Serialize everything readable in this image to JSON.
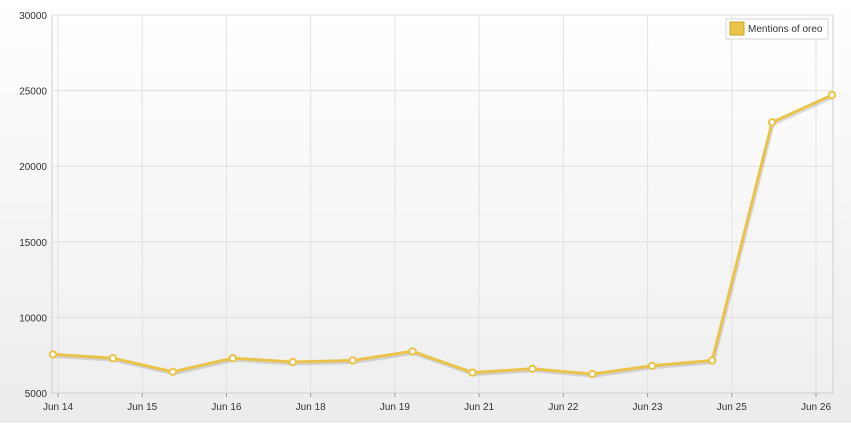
{
  "chart_data": {
    "type": "line",
    "title": "",
    "xlabel": "",
    "ylabel": "",
    "ylim": [
      5000,
      30000
    ],
    "y_ticks": [
      5000,
      10000,
      15000,
      20000,
      25000,
      30000
    ],
    "x_tick_labels": [
      "Jun 14",
      "Jun 15",
      "Jun 16",
      "Jun 18",
      "Jun 19",
      "Jun 21",
      "Jun 22",
      "Jun 23",
      "Jun 25",
      "Jun 26"
    ],
    "grid": true,
    "legend_position": "top-right",
    "series": [
      {
        "name": "Mentions of oreo",
        "color": "#e9c34a",
        "marker_fill": "#ffffff",
        "values": [
          7550,
          7300,
          6400,
          7300,
          7050,
          7150,
          7750,
          6350,
          6600,
          6250,
          6800,
          7150,
          22900,
          24700
        ]
      }
    ]
  }
}
